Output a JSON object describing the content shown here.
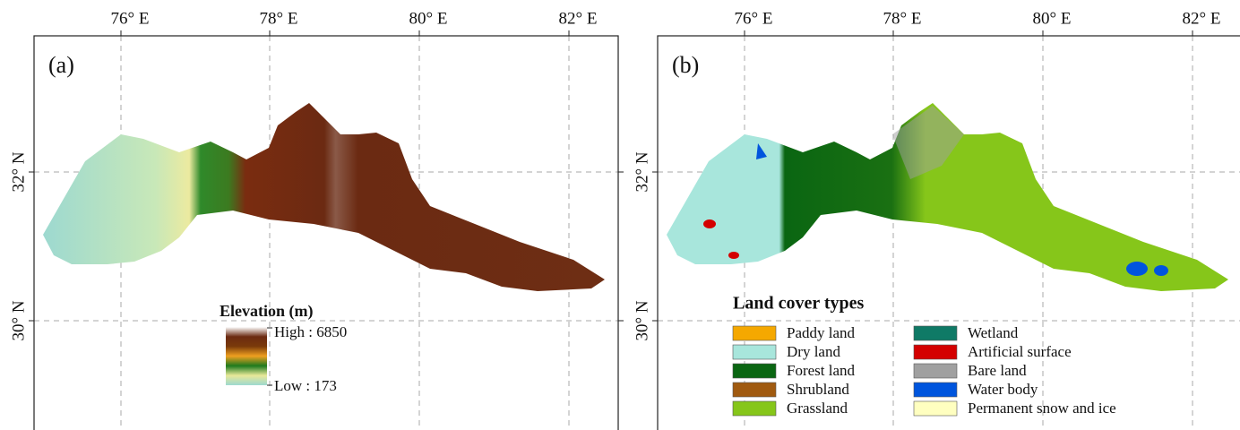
{
  "panels": [
    {
      "label": "(a)",
      "lon_labels": [
        "76° E",
        "78° E",
        "80° E",
        "82° E"
      ],
      "lat_labels": [
        "32° N",
        "30° N"
      ],
      "legend": {
        "title": "Elevation (m)",
        "high": "High : 6850",
        "low": "Low : 173",
        "colors": [
          "#ffffff",
          "#6b2a12",
          "#7a3a0a",
          "#f0a020",
          "#1e7a1e",
          "#e8e898",
          "#9dd9d0"
        ]
      }
    },
    {
      "label": "(b)",
      "lon_labels": [
        "76° E",
        "78° E",
        "80° E",
        "82° E"
      ],
      "lat_labels": [
        "32° N",
        "30° N"
      ],
      "legend": {
        "title": "Land cover types",
        "items": [
          {
            "name": "Paddy land",
            "color": "#f5a800"
          },
          {
            "name": "Dry land",
            "color": "#a8e6dc"
          },
          {
            "name": "Forest land",
            "color": "#0a6612"
          },
          {
            "name": "Shrubland",
            "color": "#a05a10"
          },
          {
            "name": "Grassland",
            "color": "#86c61a"
          },
          {
            "name": "Wetland",
            "color": "#0f7a66"
          },
          {
            "name": "Artificial surface",
            "color": "#d40000"
          },
          {
            "name": "Bare land",
            "color": "#a0a0a0"
          },
          {
            "name": "Water body",
            "color": "#0055dd"
          },
          {
            "name": "Permanent snow and ice",
            "color": "#ffffc0"
          }
        ]
      }
    }
  ]
}
